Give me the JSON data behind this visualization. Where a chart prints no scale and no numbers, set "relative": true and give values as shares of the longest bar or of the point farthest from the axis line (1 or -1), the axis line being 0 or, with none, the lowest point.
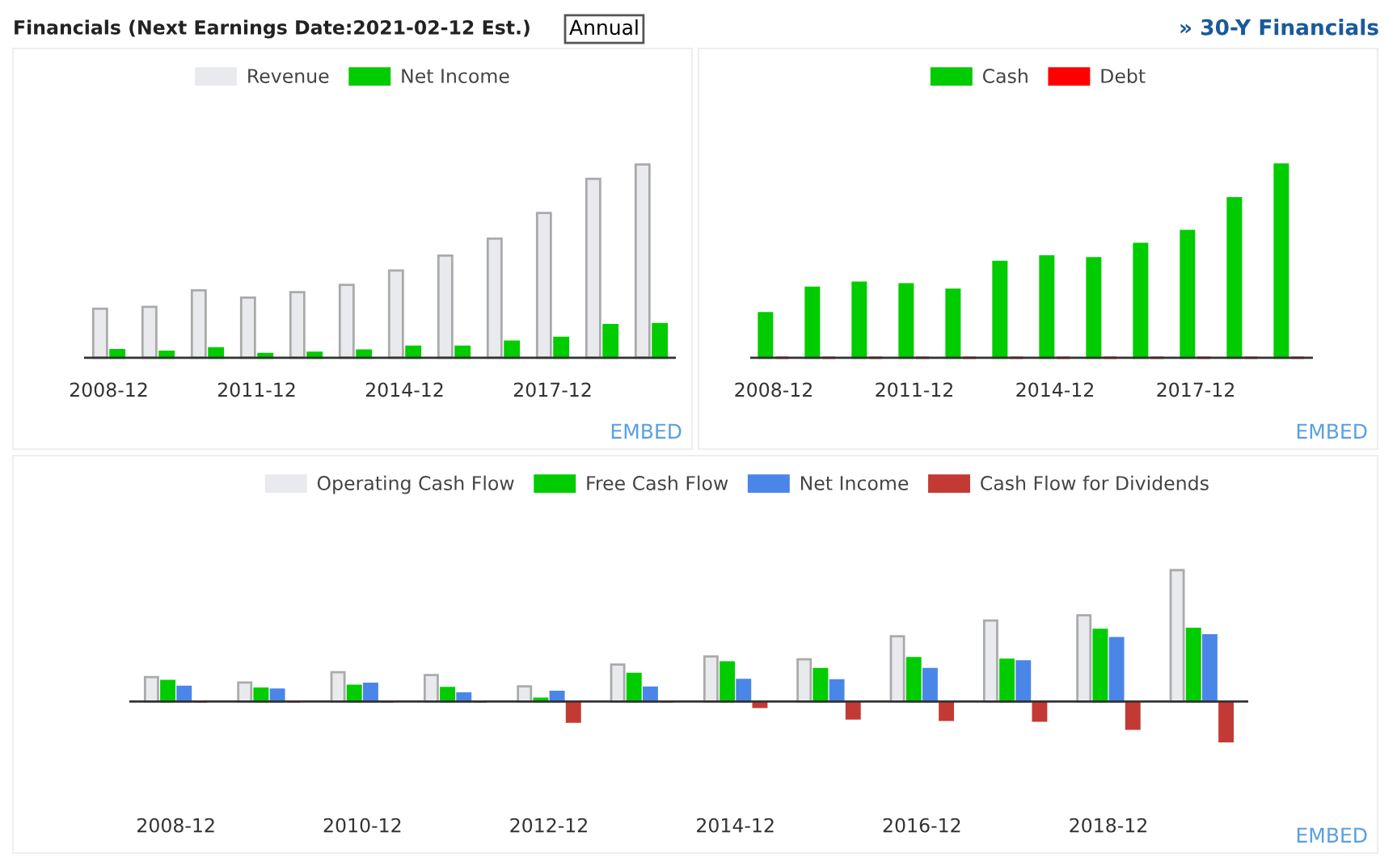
{
  "chart_data": [
    {
      "type": "bar",
      "title": "Financials (Next Earnings Date:2021-02-12 Est.)",
      "relative": true,
      "legend": "top",
      "grid": false,
      "tick_labels": "x",
      "categories": [
        "2008-12",
        null,
        null,
        "2011-12",
        null,
        null,
        "2014-12",
        null,
        null,
        "2017-12",
        null,
        null
      ],
      "series": [
        {
          "name": "Revenue",
          "color": "#e8eaed",
          "values": [
            0.254,
            0.263,
            0.349,
            0.311,
            0.34,
            0.377,
            0.451,
            0.529,
            0.617,
            0.749,
            0.926,
            1
          ]
        },
        {
          "name": "Net Income",
          "color": "#00cc00",
          "values": [
            0.04,
            0.031,
            0.049,
            0.02,
            0.026,
            0.037,
            0.057,
            0.057,
            0.083,
            0.103,
            0.169,
            0.174
          ]
        }
      ],
      "annotations": [
        "Annual",
        "» 30-Y Financials",
        "EMBED"
      ]
    },
    {
      "type": "bar",
      "relative": true,
      "legend": "top",
      "grid": false,
      "tick_labels": "x",
      "categories": [
        "2008-12",
        null,
        null,
        "2011-12",
        null,
        null,
        "2014-12",
        null,
        null,
        "2017-12",
        null,
        null
      ],
      "series": [
        {
          "name": "Cash",
          "color": "#00cc00",
          "values": [
            0.231,
            0.363,
            0.389,
            0.38,
            0.352,
            0.496,
            0.524,
            0.515,
            0.589,
            0.656,
            0.825,
            1
          ]
        },
        {
          "name": "Debt",
          "color": "#ff0000",
          "values": [
            0,
            0,
            0,
            0,
            0,
            0,
            0,
            0,
            0,
            0,
            0,
            0
          ]
        }
      ],
      "annotations": [
        "EMBED"
      ]
    },
    {
      "type": "bar",
      "relative": true,
      "legend": "top",
      "grid": false,
      "tick_labels": "x",
      "categories": [
        "2008-12",
        null,
        "2010-12",
        null,
        "2012-12",
        null,
        "2014-12",
        null,
        "2016-12",
        null,
        "2018-12",
        null
      ],
      "series": [
        {
          "name": "Operating Cash Flow",
          "color": "#e8eaed",
          "values": [
            0.186,
            0.145,
            0.223,
            0.202,
            0.116,
            0.281,
            0.343,
            0.322,
            0.496,
            0.616,
            0.657,
            1
          ]
        },
        {
          "name": "Free Cash Flow",
          "color": "#00cc00",
          "values": [
            0.157,
            0.099,
            0.12,
            0.103,
            0.021,
            0.211,
            0.298,
            0.248,
            0.331,
            0.318,
            0.545,
            0.554
          ]
        },
        {
          "name": "Net Income",
          "color": "#4a86e8",
          "values": [
            0.112,
            0.091,
            0.136,
            0.062,
            0.074,
            0.107,
            0.165,
            0.161,
            0.248,
            0.306,
            0.483,
            0.504
          ]
        },
        {
          "name": "Cash Flow for Dividends",
          "color": "#c33a35",
          "values": [
            0,
            0,
            0,
            0,
            -0.153,
            0,
            -0.041,
            -0.128,
            -0.14,
            -0.145,
            -0.207,
            -0.302
          ]
        }
      ],
      "annotations": [
        "EMBED"
      ]
    }
  ]
}
